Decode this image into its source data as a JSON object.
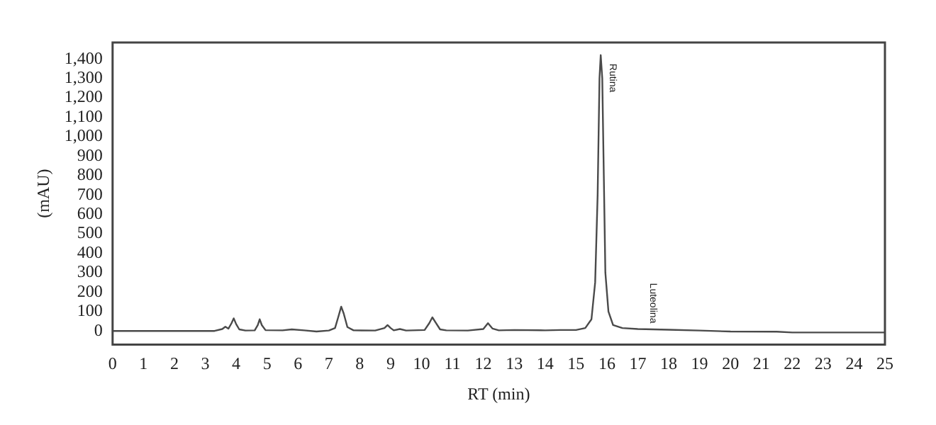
{
  "chart_data": {
    "type": "line",
    "xlabel": "RT (min)",
    "ylabel": "(mAU)",
    "x": [
      0,
      3.3,
      3.55,
      3.65,
      3.75,
      3.85,
      3.92,
      4.0,
      4.1,
      4.3,
      4.6,
      4.7,
      4.76,
      4.83,
      4.95,
      5.5,
      5.8,
      6.2,
      6.6,
      7.0,
      7.2,
      7.32,
      7.4,
      7.48,
      7.6,
      7.8,
      8.5,
      8.8,
      8.9,
      9.0,
      9.1,
      9.3,
      9.5,
      10.1,
      10.25,
      10.35,
      10.45,
      10.6,
      10.8,
      11.5,
      12.0,
      12.15,
      12.3,
      12.5,
      13.0,
      14.0,
      14.5,
      15.0,
      15.3,
      15.5,
      15.62,
      15.7,
      15.76,
      15.8,
      15.85,
      15.9,
      15.95,
      16.05,
      16.2,
      16.5,
      17.0,
      17.5,
      18.0,
      19.0,
      20.0,
      21.5,
      22.0,
      25
    ],
    "series": [
      {
        "color": "#4a4a4a",
        "values": [
          0,
          0,
          10,
          22,
          12,
          40,
          65,
          35,
          8,
          2,
          3,
          30,
          60,
          30,
          4,
          3,
          8,
          3,
          -3,
          2,
          15,
          80,
          125,
          90,
          20,
          3,
          2,
          15,
          30,
          15,
          3,
          10,
          2,
          5,
          40,
          70,
          45,
          8,
          3,
          2,
          10,
          40,
          12,
          3,
          5,
          3,
          5,
          5,
          15,
          60,
          250,
          700,
          1300,
          1420,
          1300,
          800,
          300,
          100,
          30,
          15,
          10,
          8,
          6,
          2,
          -3,
          -4,
          -8,
          -8
        ]
      }
    ],
    "xlim": [
      0,
      25
    ],
    "xticks": [
      0,
      1,
      2,
      3,
      4,
      5,
      6,
      7,
      8,
      9,
      10,
      11,
      12,
      13,
      14,
      15,
      16,
      17,
      18,
      19,
      20,
      21,
      22,
      23,
      24,
      25
    ],
    "ylim": [
      -70,
      1485
    ],
    "yticks": [
      0,
      100,
      200,
      300,
      400,
      500,
      600,
      700,
      800,
      900,
      {
        "value": 1000,
        "label": "1,000"
      },
      {
        "value": 1100,
        "label": "1,100"
      },
      {
        "value": 1200,
        "label": "1,200"
      },
      {
        "value": 1300,
        "label": "1,300"
      },
      {
        "value": 1400,
        "label": "1,400"
      }
    ],
    "grid": false,
    "legend": false,
    "marker": "none",
    "line_style": "solid",
    "annotations": [
      {
        "text": "Rutina",
        "x": 15.8,
        "y": 1420
      },
      {
        "text": "Luteolina",
        "x": 17.1,
        "y": 10
      }
    ]
  }
}
